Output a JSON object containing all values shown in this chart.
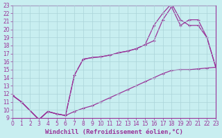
{
  "xlabel": "Windchill (Refroidissement éolien,°C)",
  "xlim": [
    0,
    23
  ],
  "ylim": [
    9,
    23
  ],
  "xticks": [
    0,
    1,
    2,
    3,
    4,
    5,
    6,
    7,
    8,
    9,
    10,
    11,
    12,
    13,
    14,
    15,
    16,
    17,
    18,
    19,
    20,
    21,
    22,
    23
  ],
  "yticks": [
    9,
    10,
    11,
    12,
    13,
    14,
    15,
    16,
    17,
    18,
    19,
    20,
    21,
    22,
    23
  ],
  "line_color": "#993399",
  "bg_color": "#c8eef0",
  "grid_color": "#aad4d8",
  "line1_x": [
    0,
    1,
    3,
    4,
    5,
    6,
    7,
    8,
    9,
    10,
    11,
    12,
    13,
    14,
    15,
    16,
    17,
    18,
    19,
    20,
    21,
    22,
    23
  ],
  "line1_y": [
    11.8,
    11.0,
    8.8,
    9.8,
    9.5,
    9.3,
    9.8,
    10.2,
    10.5,
    11.0,
    11.5,
    12.0,
    12.5,
    13.0,
    13.5,
    14.0,
    14.5,
    14.9,
    15.0,
    15.0,
    15.1,
    15.2,
    15.3
  ],
  "line2_x": [
    0,
    1,
    3,
    4,
    5,
    6,
    7,
    8,
    9,
    10,
    11,
    12,
    13,
    14,
    15,
    16,
    17,
    18,
    19,
    20,
    21,
    22,
    23
  ],
  "line2_y": [
    11.8,
    11.0,
    8.8,
    9.8,
    9.5,
    9.3,
    14.3,
    16.3,
    16.5,
    16.6,
    16.8,
    17.1,
    17.3,
    17.6,
    18.1,
    18.6,
    21.2,
    22.8,
    20.5,
    21.2,
    21.2,
    19.0,
    15.3
  ],
  "line3_x": [
    0,
    1,
    3,
    4,
    5,
    6,
    7,
    8,
    9,
    10,
    11,
    12,
    13,
    14,
    15,
    16,
    17,
    18,
    19,
    20,
    21,
    22,
    23
  ],
  "line3_y": [
    11.8,
    11.0,
    8.8,
    9.8,
    9.5,
    9.3,
    14.3,
    16.3,
    16.5,
    16.6,
    16.8,
    17.1,
    17.3,
    17.6,
    18.1,
    20.5,
    22.0,
    23.2,
    21.2,
    20.5,
    20.5,
    19.0,
    15.3
  ],
  "marker": "+",
  "markersize": 3.5,
  "linewidth": 0.9,
  "tick_fontsize": 5.5,
  "label_fontsize": 6.5
}
